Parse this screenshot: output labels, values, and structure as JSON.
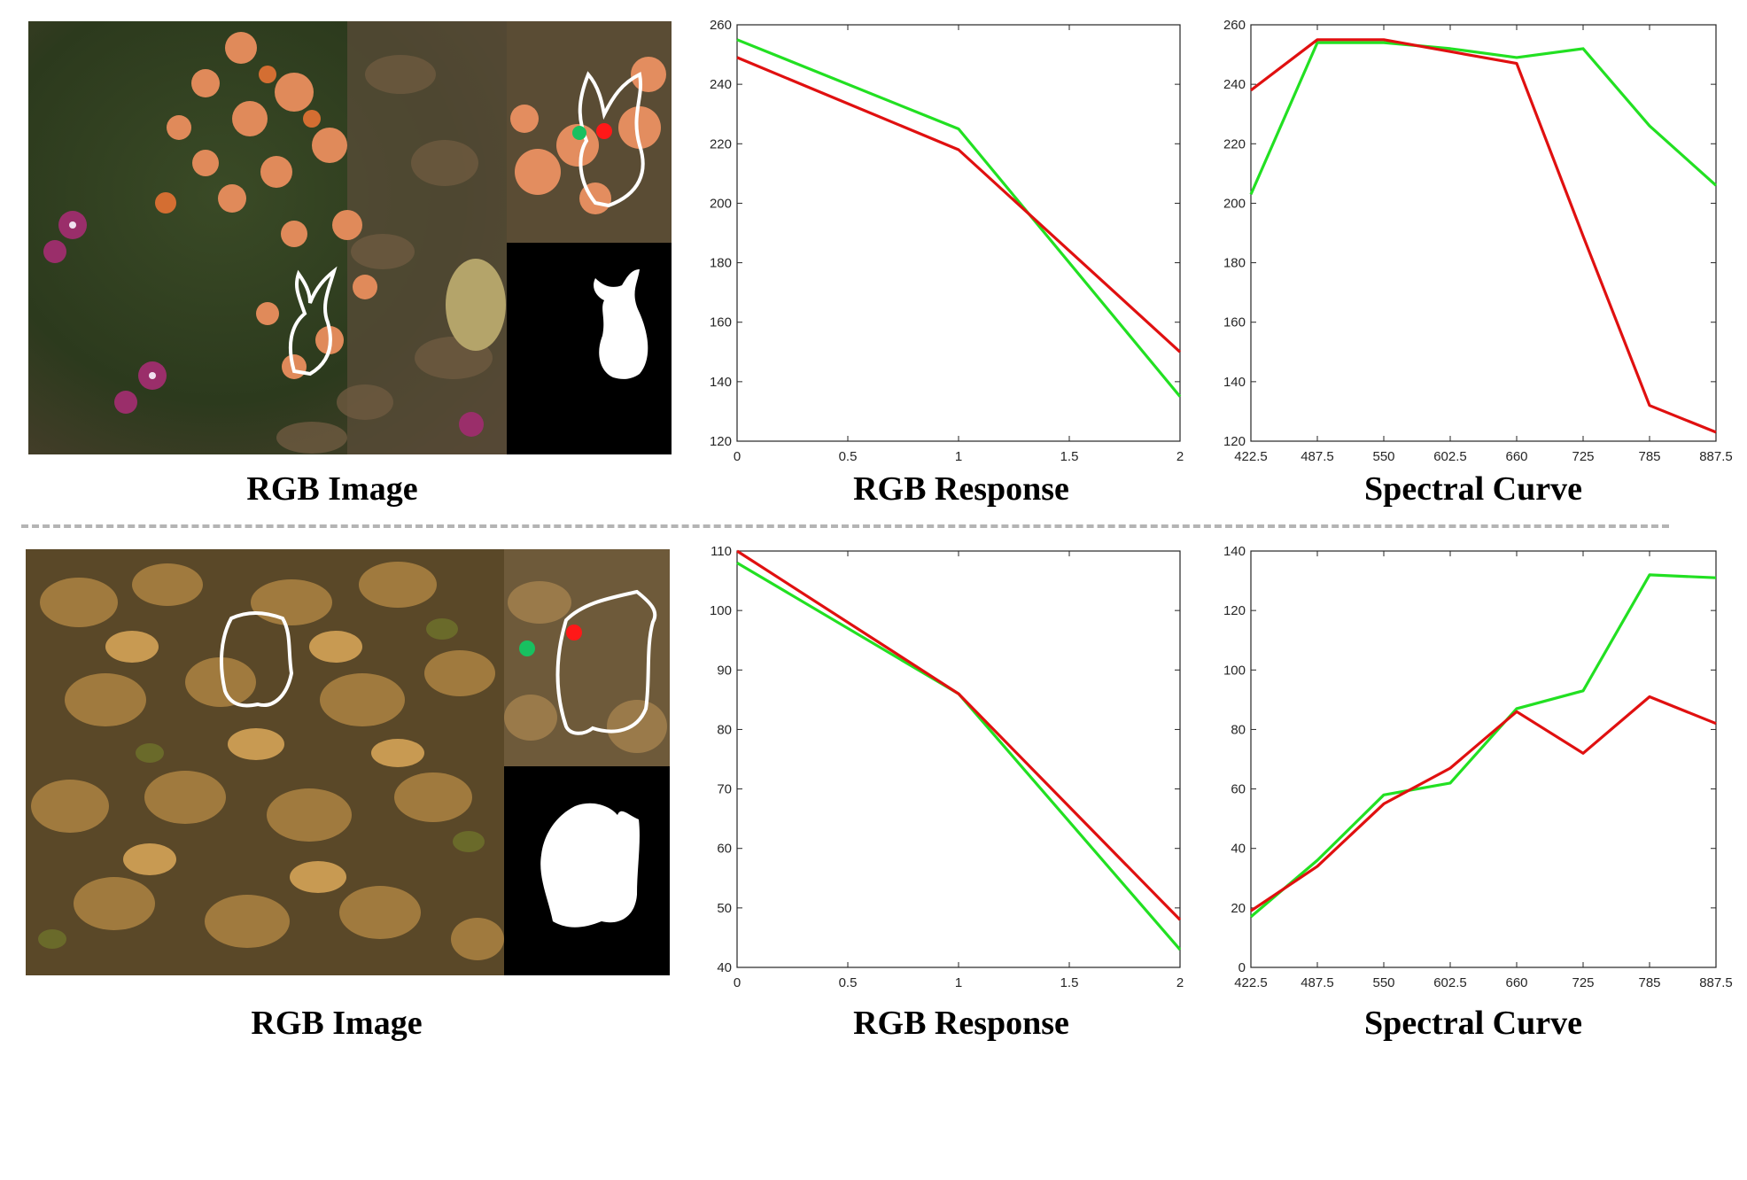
{
  "colors": {
    "camouflage": "#e01010",
    "reference": "#22e022",
    "axis": "#262626",
    "divider": "#b4b4b4"
  },
  "rows": [
    {
      "captions": {
        "image": "RGB Image",
        "rgb": "RGB Response",
        "spectral": "Spectral Curve"
      },
      "image_theme": "flowers",
      "chart_data": [
        {
          "type": "line",
          "title": "RGB Response",
          "x": [
            0,
            1,
            2
          ],
          "xticks": [
            "0",
            "0.5",
            "1",
            "1.5",
            "2"
          ],
          "xlim": [
            0,
            2
          ],
          "ylim": [
            120,
            260
          ],
          "yticks": [
            120,
            140,
            160,
            180,
            200,
            220,
            240,
            260
          ],
          "series": [
            {
              "color": "#22e022",
              "values": [
                255,
                225,
                135
              ]
            },
            {
              "color": "#e01010",
              "values": [
                249,
                218,
                150
              ]
            }
          ]
        },
        {
          "type": "line",
          "title": "Spectral Curve",
          "categories": [
            "422.5",
            "487.5",
            "550",
            "602.5",
            "660",
            "725",
            "785",
            "887.5"
          ],
          "ylim": [
            120,
            260
          ],
          "yticks": [
            120,
            140,
            160,
            180,
            200,
            220,
            240,
            260
          ],
          "series": [
            {
              "color": "#22e022",
              "values": [
                203,
                254,
                254,
                252,
                249,
                252,
                226,
                206
              ]
            },
            {
              "color": "#e01010",
              "values": [
                238,
                255,
                255,
                251,
                247,
                189,
                132,
                123
              ]
            }
          ]
        }
      ]
    },
    {
      "captions": {
        "image": "RGB Image",
        "rgb": "RGB Response",
        "spectral": "Spectral Curve"
      },
      "image_theme": "leaves",
      "chart_data": [
        {
          "type": "line",
          "title": "RGB Response",
          "x": [
            0,
            1,
            2
          ],
          "xticks": [
            "0",
            "0.5",
            "1",
            "1.5",
            "2"
          ],
          "xlim": [
            0,
            2
          ],
          "ylim": [
            40,
            110
          ],
          "yticks": [
            40,
            50,
            60,
            70,
            80,
            90,
            100,
            110
          ],
          "series": [
            {
              "color": "#22e022",
              "values": [
                108,
                86,
                43
              ]
            },
            {
              "color": "#e01010",
              "values": [
                110,
                86,
                48
              ]
            }
          ]
        },
        {
          "type": "line",
          "title": "Spectral Curve",
          "categories": [
            "422.5",
            "487.5",
            "550",
            "602.5",
            "660",
            "725",
            "785",
            "887.5"
          ],
          "ylim": [
            0,
            140
          ],
          "yticks": [
            0,
            20,
            40,
            60,
            80,
            100,
            120,
            140
          ],
          "series": [
            {
              "color": "#22e022",
              "values": [
                17,
                36,
                58,
                62,
                87,
                93,
                132,
                131
              ]
            },
            {
              "color": "#e01010",
              "values": [
                19,
                34,
                55,
                67,
                86,
                72,
                91,
                82
              ]
            }
          ]
        }
      ]
    }
  ]
}
